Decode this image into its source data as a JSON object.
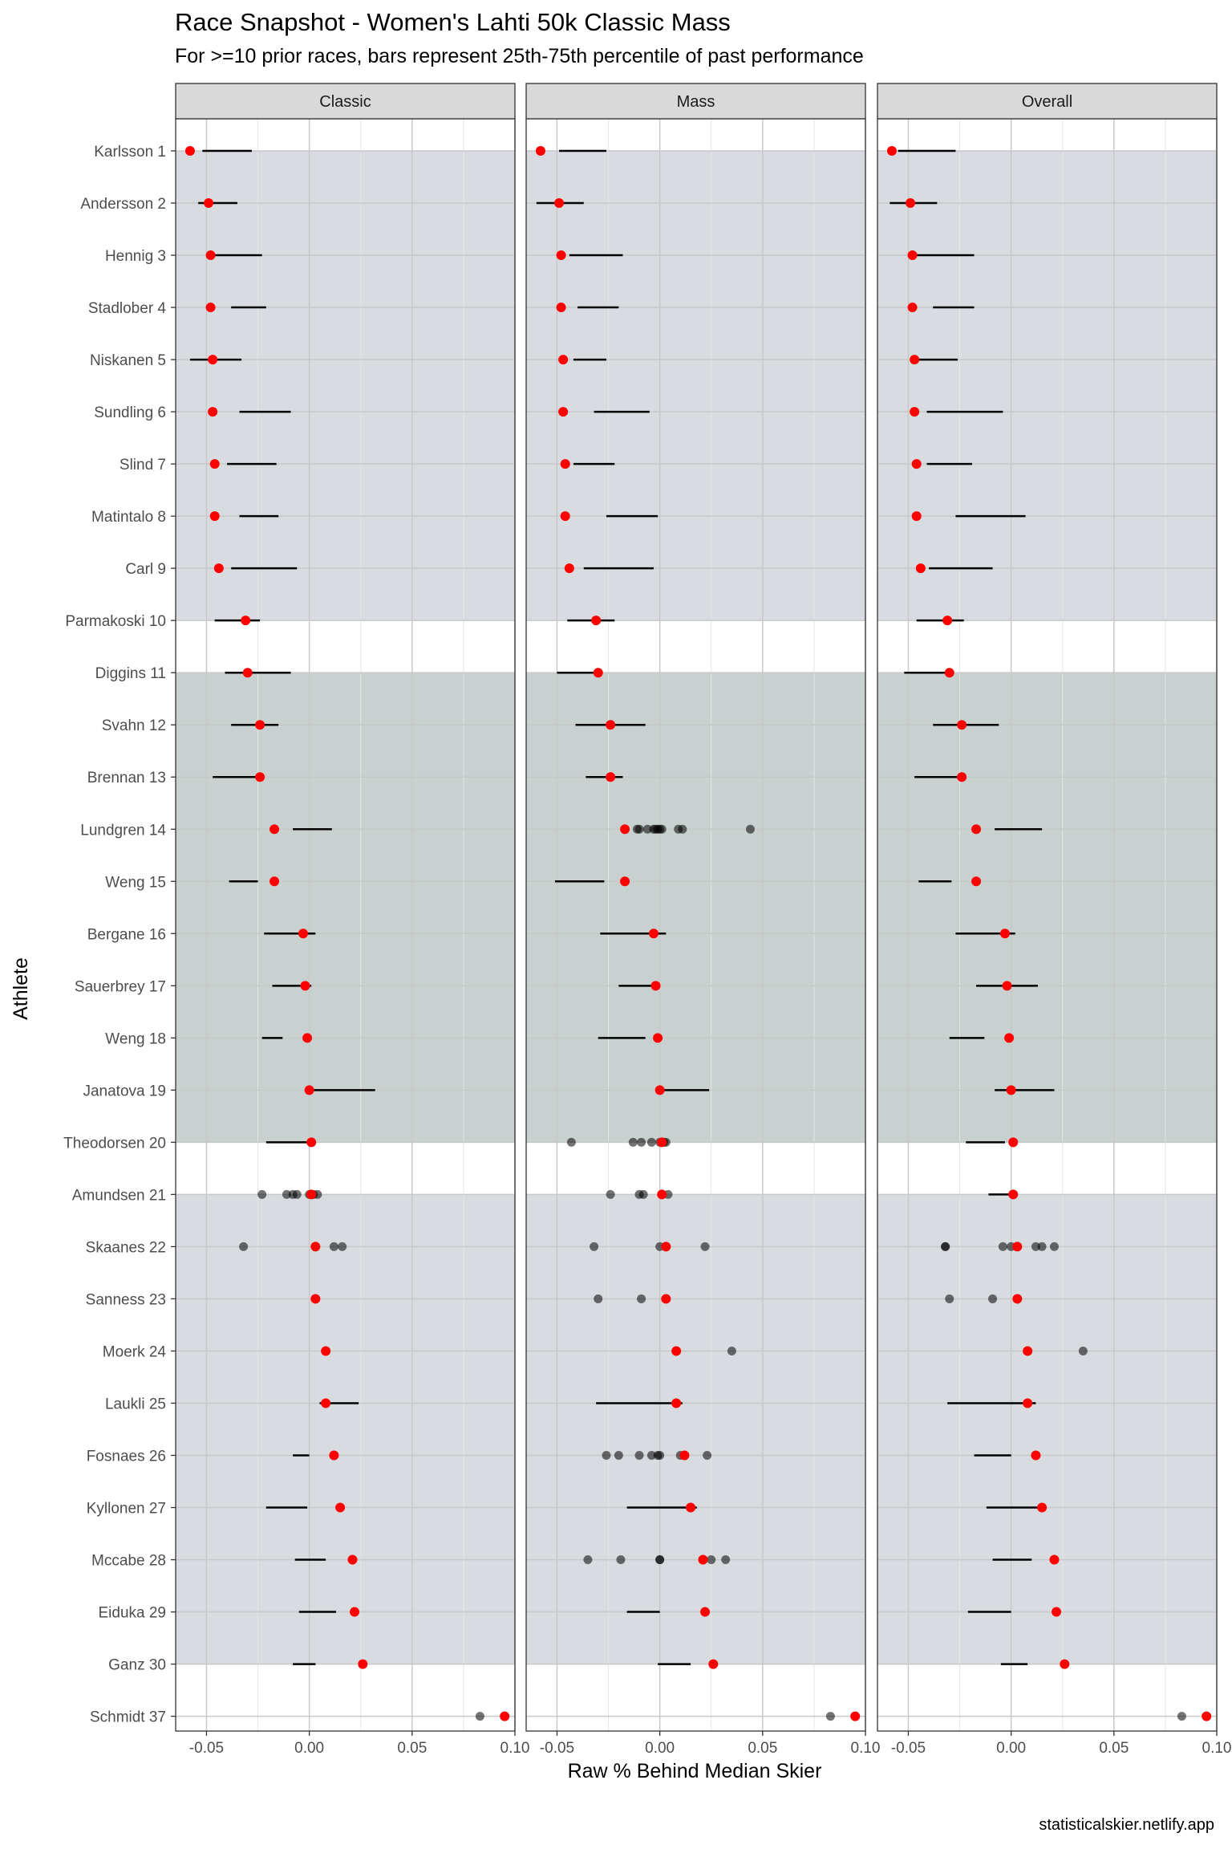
{
  "title": "Race Snapshot -  Women's Lahti 50k Classic Mass",
  "subtitle": "For >=10 prior races, bars represent 25th-75th percentile of past performance",
  "credit": "statisticalskier.netlify.app",
  "chart_data": {
    "type": "dot-range",
    "xlabel": "Raw % Behind Median Skier",
    "ylabel": "Athlete",
    "xlim": [
      -0.065,
      0.1
    ],
    "x_ticks": [
      "-0.05",
      "0.00",
      "0.05",
      "0.10"
    ],
    "x_tick_values": [
      -0.05,
      0.0,
      0.05,
      0.1
    ],
    "grid": true,
    "colors": {
      "current_race": "#ff0000",
      "past_race": "#000000",
      "band_top": "#d8dbe0",
      "band_mid": "#c8d0d0",
      "band_bottom": "#d8dbe0",
      "strip": "#d9d9d9"
    },
    "panels": [
      "Classic",
      "Mass",
      "Overall"
    ],
    "bands": [
      {
        "from": "Karlsson 1",
        "to": "Parmakoski 10",
        "color": "#d8dbe0"
      },
      {
        "from": "Diggins 11",
        "to": "Theodorsen 20",
        "color": "#c8d0d0"
      },
      {
        "from": "Amundsen 21",
        "to": "Ganz 30",
        "color": "#d8dbe0"
      }
    ],
    "athletes": [
      {
        "name": "Karlsson 1",
        "race": -0.058,
        "classic": {
          "range": [
            -0.052,
            -0.028
          ]
        },
        "mass": {
          "range": [
            -0.049,
            -0.026
          ]
        },
        "overall": {
          "range": [
            -0.055,
            -0.027
          ]
        }
      },
      {
        "name": "Andersson 2",
        "race": -0.049,
        "classic": {
          "range": [
            -0.054,
            -0.035
          ]
        },
        "mass": {
          "range": [
            -0.06,
            -0.037
          ]
        },
        "overall": {
          "range": [
            -0.059,
            -0.036
          ]
        }
      },
      {
        "name": "Hennig 3",
        "race": -0.048,
        "classic": {
          "range": [
            -0.048,
            -0.023
          ]
        },
        "mass": {
          "range": [
            -0.044,
            -0.018
          ]
        },
        "overall": {
          "range": [
            -0.047,
            -0.018
          ]
        }
      },
      {
        "name": "Stadlober 4",
        "race": -0.048,
        "classic": {
          "range": [
            -0.038,
            -0.021
          ]
        },
        "mass": {
          "range": [
            -0.04,
            -0.02
          ]
        },
        "overall": {
          "range": [
            -0.038,
            -0.018
          ]
        }
      },
      {
        "name": "Niskanen 5",
        "race": -0.047,
        "classic": {
          "range": [
            -0.058,
            -0.033
          ]
        },
        "mass": {
          "range": [
            -0.042,
            -0.026
          ]
        },
        "overall": {
          "range": [
            -0.046,
            -0.026
          ]
        }
      },
      {
        "name": "Sundling 6",
        "race": -0.047,
        "classic": {
          "range": [
            -0.034,
            -0.009
          ]
        },
        "mass": {
          "range": [
            -0.032,
            -0.005
          ]
        },
        "overall": {
          "range": [
            -0.041,
            -0.004
          ]
        }
      },
      {
        "name": "Slind 7",
        "race": -0.046,
        "classic": {
          "range": [
            -0.04,
            -0.016
          ]
        },
        "mass": {
          "range": [
            -0.042,
            -0.022
          ]
        },
        "overall": {
          "range": [
            -0.041,
            -0.019
          ]
        }
      },
      {
        "name": "Matintalo 8",
        "race": -0.046,
        "classic": {
          "range": [
            -0.034,
            -0.015
          ]
        },
        "mass": {
          "range": [
            -0.026,
            -0.001
          ]
        },
        "overall": {
          "range": [
            -0.027,
            0.007
          ]
        }
      },
      {
        "name": "Carl 9",
        "race": -0.044,
        "classic": {
          "range": [
            -0.038,
            -0.006
          ]
        },
        "mass": {
          "range": [
            -0.037,
            -0.003
          ]
        },
        "overall": {
          "range": [
            -0.04,
            -0.009
          ]
        }
      },
      {
        "name": "Parmakoski 10",
        "race": -0.031,
        "classic": {
          "range": [
            -0.046,
            -0.024
          ]
        },
        "mass": {
          "range": [
            -0.045,
            -0.022
          ]
        },
        "overall": {
          "range": [
            -0.046,
            -0.023
          ]
        }
      },
      {
        "name": "Diggins 11",
        "race": -0.03,
        "classic": {
          "range": [
            -0.041,
            -0.009
          ]
        },
        "mass": {
          "range": [
            -0.05,
            -0.028
          ]
        },
        "overall": {
          "range": [
            -0.052,
            -0.029
          ]
        }
      },
      {
        "name": "Svahn 12",
        "race": -0.024,
        "classic": {
          "range": [
            -0.038,
            -0.015
          ]
        },
        "mass": {
          "range": [
            -0.041,
            -0.007
          ]
        },
        "overall": {
          "range": [
            -0.038,
            -0.006
          ]
        }
      },
      {
        "name": "Brennan 13",
        "race": -0.024,
        "classic": {
          "range": [
            -0.047,
            -0.024
          ]
        },
        "mass": {
          "range": [
            -0.036,
            -0.018
          ]
        },
        "overall": {
          "range": [
            -0.047,
            -0.024
          ]
        }
      },
      {
        "name": "Lundgren 14",
        "race": -0.017,
        "classic": {
          "range": [
            -0.008,
            0.011
          ]
        },
        "mass": {
          "points": [
            -0.011,
            -0.01,
            -0.006,
            -0.003,
            -0.002,
            -0.001,
            0.0,
            0.001,
            0.009,
            0.011,
            0.044
          ]
        },
        "overall": {
          "range": [
            -0.008,
            0.015
          ]
        }
      },
      {
        "name": "Weng 15",
        "race": -0.017,
        "classic": {
          "range": [
            -0.039,
            -0.025
          ]
        },
        "mass": {
          "range": [
            -0.051,
            -0.027
          ]
        },
        "overall": {
          "range": [
            -0.045,
            -0.029
          ]
        }
      },
      {
        "name": "Bergane 16",
        "race": -0.003,
        "classic": {
          "range": [
            -0.022,
            0.003
          ]
        },
        "mass": {
          "range": [
            -0.029,
            0.003
          ]
        },
        "overall": {
          "range": [
            -0.027,
            0.002
          ]
        }
      },
      {
        "name": "Sauerbrey 17",
        "race": -0.002,
        "classic": {
          "range": [
            -0.018,
            0.001
          ]
        },
        "mass": {
          "range": [
            -0.02,
            0.0
          ]
        },
        "overall": {
          "range": [
            -0.017,
            0.013
          ]
        }
      },
      {
        "name": "Weng 18",
        "race": -0.001,
        "classic": {
          "range": [
            -0.023,
            -0.013
          ]
        },
        "mass": {
          "range": [
            -0.03,
            -0.007
          ]
        },
        "overall": {
          "range": [
            -0.03,
            -0.013
          ]
        }
      },
      {
        "name": "Janatova 19",
        "race": 0.0,
        "classic": {
          "range": [
            -0.002,
            0.032
          ]
        },
        "mass": {
          "range": [
            -0.001,
            0.024
          ]
        },
        "overall": {
          "range": [
            -0.008,
            0.021
          ]
        }
      },
      {
        "name": "Theodorsen 20",
        "race": 0.001,
        "classic": {
          "range": [
            -0.021,
            0.002
          ]
        },
        "mass": {
          "points": [
            -0.043,
            -0.013,
            -0.009,
            -0.004,
            0.0,
            0.001,
            0.002,
            0.003
          ]
        },
        "overall": {
          "range": [
            -0.022,
            -0.003
          ]
        }
      },
      {
        "name": "Amundsen 21",
        "race": 0.001,
        "classic": {
          "points": [
            -0.023,
            -0.011,
            -0.008,
            -0.006,
            0.0,
            0.001,
            0.002,
            0.004
          ]
        },
        "mass": {
          "points": [
            -0.024,
            -0.01,
            -0.008,
            0.004
          ]
        },
        "overall": {
          "range": [
            -0.011,
            0.002
          ]
        }
      },
      {
        "name": "Skaanes 22",
        "race": 0.003,
        "classic": {
          "points": [
            -0.032,
            0.012,
            0.016
          ]
        },
        "mass": {
          "points": [
            -0.032,
            0.0,
            0.022
          ]
        },
        "overall": {
          "points": [
            -0.032,
            -0.032,
            -0.004,
            0.0,
            0.012,
            0.015,
            0.021
          ]
        }
      },
      {
        "name": "Sanness 23",
        "race": 0.003,
        "classic": {
          "points": []
        },
        "mass": {
          "points": [
            -0.03,
            -0.009
          ]
        },
        "overall": {
          "points": [
            -0.03,
            -0.009
          ]
        }
      },
      {
        "name": "Moerk 24",
        "race": 0.008,
        "classic": {
          "points": []
        },
        "mass": {
          "points": [
            0.035
          ]
        },
        "overall": {
          "points": [
            0.035
          ]
        }
      },
      {
        "name": "Laukli 25",
        "race": 0.008,
        "classic": {
          "range": [
            0.005,
            0.024
          ]
        },
        "mass": {
          "range": [
            -0.031,
            0.011
          ]
        },
        "overall": {
          "range": [
            -0.031,
            0.012
          ]
        }
      },
      {
        "name": "Fosnaes 26",
        "race": 0.012,
        "classic": {
          "range": [
            -0.008,
            0.0
          ]
        },
        "mass": {
          "points": [
            -0.026,
            -0.02,
            -0.01,
            -0.004,
            -0.001,
            0.0,
            0.01,
            0.012,
            0.023
          ]
        },
        "overall": {
          "range": [
            -0.018,
            0.0
          ]
        }
      },
      {
        "name": "Kyllonen 27",
        "race": 0.015,
        "classic": {
          "range": [
            -0.021,
            -0.001
          ]
        },
        "mass": {
          "range": [
            -0.016,
            0.018
          ]
        },
        "overall": {
          "range": [
            -0.012,
            0.015
          ]
        }
      },
      {
        "name": "Mccabe 28",
        "race": 0.021,
        "classic": {
          "range": [
            -0.007,
            0.008
          ]
        },
        "mass": {
          "points": [
            -0.035,
            -0.019,
            0.0,
            0.0,
            0.025,
            0.032
          ]
        },
        "overall": {
          "range": [
            -0.009,
            0.01
          ]
        }
      },
      {
        "name": "Eiduka 29",
        "race": 0.022,
        "classic": {
          "range": [
            -0.005,
            0.013
          ]
        },
        "mass": {
          "range": [
            -0.016,
            0.0
          ]
        },
        "overall": {
          "range": [
            -0.021,
            0.0
          ]
        }
      },
      {
        "name": "Ganz 30",
        "race": 0.026,
        "classic": {
          "range": [
            -0.008,
            0.003
          ]
        },
        "mass": {
          "range": [
            -0.001,
            0.015
          ]
        },
        "overall": {
          "range": [
            -0.005,
            0.008
          ]
        }
      },
      {
        "name": "Schmidt 37",
        "race": 0.095,
        "classic": {
          "points": [
            0.083
          ]
        },
        "mass": {
          "points": [
            0.083
          ]
        },
        "overall": {
          "points": [
            0.083
          ]
        }
      }
    ]
  }
}
